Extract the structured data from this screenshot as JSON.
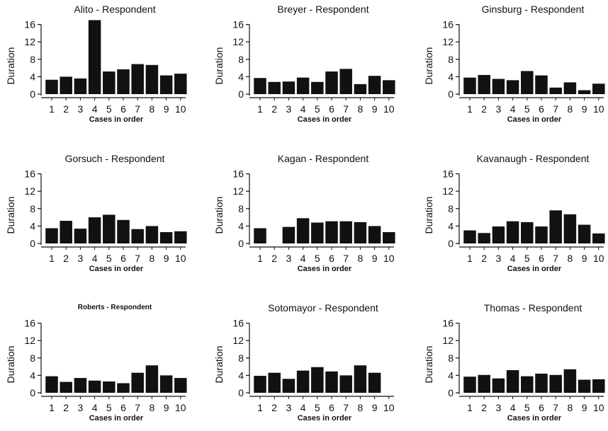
{
  "chart_data": [
    {
      "type": "bar",
      "title": "Alito - Respondent",
      "xlabel": "Cases in order",
      "ylabel": "Duration",
      "categories": [
        "1",
        "2",
        "3",
        "4",
        "5",
        "6",
        "7",
        "8",
        "9",
        "10"
      ],
      "values": [
        3.3,
        4.0,
        3.6,
        17.0,
        5.2,
        5.7,
        6.9,
        6.7,
        4.3,
        4.7
      ],
      "ylim": [
        0,
        17
      ],
      "yticks": [
        0,
        4,
        8,
        12,
        16
      ]
    },
    {
      "type": "bar",
      "title": "Breyer - Respondent",
      "xlabel": "Cases in order",
      "ylabel": "Duration",
      "categories": [
        "1",
        "2",
        "3",
        "4",
        "5",
        "6",
        "7",
        "8",
        "9",
        "10"
      ],
      "values": [
        3.7,
        2.8,
        2.9,
        3.8,
        2.8,
        5.2,
        5.8,
        2.3,
        4.2,
        3.2
      ],
      "ylim": [
        0,
        17
      ],
      "yticks": [
        0,
        4,
        8,
        12,
        16
      ]
    },
    {
      "type": "bar",
      "title": "Ginsburg - Respondent",
      "xlabel": "Cases in order",
      "ylabel": "Duration",
      "categories": [
        "1",
        "2",
        "3",
        "4",
        "5",
        "6",
        "7",
        "8",
        "9",
        "10"
      ],
      "values": [
        3.8,
        4.4,
        3.5,
        3.2,
        5.3,
        4.3,
        1.5,
        2.7,
        0.9,
        2.4
      ],
      "ylim": [
        0,
        17
      ],
      "yticks": [
        0,
        4,
        8,
        12,
        16
      ]
    },
    {
      "type": "bar",
      "title": "Gorsuch - Respondent",
      "xlabel": "Cases in order",
      "ylabel": "Duration",
      "categories": [
        "1",
        "2",
        "3",
        "4",
        "5",
        "6",
        "7",
        "8",
        "9",
        "10"
      ],
      "values": [
        3.5,
        5.2,
        3.4,
        6.0,
        6.6,
        5.4,
        3.3,
        4.0,
        2.6,
        2.8
      ],
      "ylim": [
        0,
        17
      ],
      "yticks": [
        0,
        4,
        8,
        12,
        16
      ]
    },
    {
      "type": "bar",
      "title": "Kagan - Respondent",
      "xlabel": "Cases in order",
      "ylabel": "Duration",
      "categories": [
        "1",
        "2",
        "3",
        "4",
        "5",
        "6",
        "7",
        "8",
        "9",
        "10"
      ],
      "values": [
        3.5,
        0,
        3.8,
        5.8,
        4.8,
        5.1,
        5.1,
        4.9,
        4.0,
        2.6
      ],
      "ylim": [
        0,
        17
      ],
      "yticks": [
        0,
        4,
        8,
        12,
        16
      ]
    },
    {
      "type": "bar",
      "title": "Kavanaugh - Respondent",
      "xlabel": "Cases in order",
      "ylabel": "Duration",
      "categories": [
        "1",
        "2",
        "3",
        "4",
        "5",
        "6",
        "7",
        "8",
        "9",
        "10"
      ],
      "values": [
        3.0,
        2.4,
        3.9,
        5.1,
        4.9,
        3.9,
        7.6,
        6.7,
        4.3,
        2.3
      ],
      "ylim": [
        0,
        17
      ],
      "yticks": [
        0,
        4,
        8,
        12,
        16
      ]
    },
    {
      "type": "bar",
      "title": "Roberts - Respondent",
      "xlabel": "Cases in order",
      "ylabel": "Duration",
      "categories": [
        "1",
        "2",
        "3",
        "4",
        "5",
        "6",
        "7",
        "8",
        "9",
        "10"
      ],
      "values": [
        3.8,
        2.5,
        3.4,
        2.8,
        2.6,
        2.2,
        4.6,
        6.3,
        4.0,
        3.4
      ],
      "ylim": [
        0,
        17
      ],
      "yticks": [
        0,
        4,
        8,
        12,
        16
      ]
    },
    {
      "type": "bar",
      "title": "Sotomayor - Respondent",
      "xlabel": "Cases in order",
      "ylabel": "Duration",
      "categories": [
        "1",
        "2",
        "3",
        "4",
        "5",
        "6",
        "7",
        "8",
        "9",
        "10"
      ],
      "values": [
        3.9,
        4.6,
        3.2,
        5.1,
        5.9,
        4.9,
        4.0,
        6.3,
        4.6,
        0
      ],
      "ylim": [
        0,
        17
      ],
      "yticks": [
        0,
        4,
        8,
        12,
        16
      ]
    },
    {
      "type": "bar",
      "title": "Thomas - Respondent",
      "xlabel": "Cases in order",
      "ylabel": "Duration",
      "categories": [
        "1",
        "2",
        "3",
        "4",
        "5",
        "6",
        "7",
        "8",
        "9",
        "10"
      ],
      "values": [
        3.7,
        4.1,
        3.3,
        5.2,
        3.8,
        4.4,
        4.1,
        5.4,
        3.0,
        3.1
      ],
      "ylim": [
        0,
        17
      ],
      "yticks": [
        0,
        4,
        8,
        12,
        16
      ]
    }
  ],
  "colors": {
    "bar": "#111111",
    "axis": "#111111",
    "background": "#ffffff"
  }
}
